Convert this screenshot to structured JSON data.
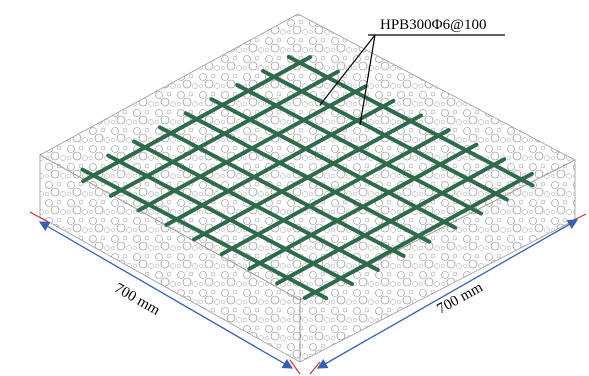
{
  "annotation": {
    "label": "HPB300Φ6@100"
  },
  "dimensions": {
    "left": "700 mm",
    "right": "700 mm"
  }
}
